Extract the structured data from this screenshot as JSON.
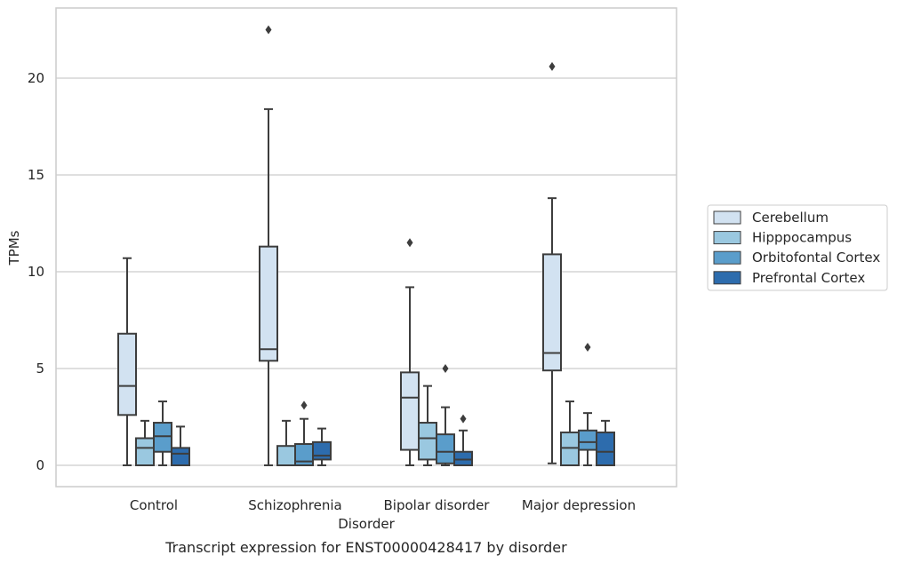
{
  "chart_data": {
    "type": "box",
    "title": "",
    "caption": "Transcript expression for ENST00000428417 by disorder",
    "xlabel": "Disorder",
    "ylabel": "TPMs",
    "ylim": [
      -1.1,
      23.5
    ],
    "yticks": [
      0,
      5,
      10,
      15,
      20
    ],
    "grid": "horizontal",
    "legend_position": "right",
    "categories": [
      "Control",
      "Schizophrenia",
      "Bipolar disorder",
      "Major depression"
    ],
    "series": [
      {
        "name": "Cerebellum",
        "color": "#d2e2f1",
        "boxes": [
          {
            "whislo": 0,
            "q1": 2.6,
            "med": 4.1,
            "q3": 6.8,
            "whishi": 10.7,
            "fliers": []
          },
          {
            "whislo": 0,
            "q1": 5.4,
            "med": 6.0,
            "q3": 11.3,
            "whishi": 18.4,
            "fliers": [
              22.5
            ]
          },
          {
            "whislo": 0,
            "q1": 0.8,
            "med": 3.5,
            "q3": 4.8,
            "whishi": 9.2,
            "fliers": [
              11.5
            ]
          },
          {
            "whislo": 0.1,
            "q1": 4.9,
            "med": 5.8,
            "q3": 10.9,
            "whishi": 13.8,
            "fliers": [
              20.6
            ]
          }
        ]
      },
      {
        "name": "Hipppocampus",
        "color": "#9ac8e0",
        "boxes": [
          {
            "whislo": 0,
            "q1": 0,
            "med": 0.9,
            "q3": 1.4,
            "whishi": 2.3,
            "fliers": []
          },
          {
            "whislo": 0,
            "q1": 0,
            "med": 0,
            "q3": 1.0,
            "whishi": 2.3,
            "fliers": []
          },
          {
            "whislo": 0,
            "q1": 0.3,
            "med": 1.4,
            "q3": 2.2,
            "whishi": 4.1,
            "fliers": []
          },
          {
            "whislo": 0,
            "q1": 0,
            "med": 0.9,
            "q3": 1.7,
            "whishi": 3.3,
            "fliers": []
          }
        ]
      },
      {
        "name": "Orbitofontal Cortex",
        "color": "#5a9dcb",
        "boxes": [
          {
            "whislo": 0,
            "q1": 0.7,
            "med": 1.5,
            "q3": 2.2,
            "whishi": 3.3,
            "fliers": []
          },
          {
            "whislo": 0,
            "q1": 0,
            "med": 0.2,
            "q3": 1.1,
            "whishi": 2.4,
            "fliers": [
              3.1
            ]
          },
          {
            "whislo": 0,
            "q1": 0.1,
            "med": 0.7,
            "q3": 1.6,
            "whishi": 3.0,
            "fliers": [
              5.0
            ]
          },
          {
            "whislo": 0,
            "q1": 0.8,
            "med": 1.2,
            "q3": 1.8,
            "whishi": 2.7,
            "fliers": [
              6.1
            ]
          }
        ]
      },
      {
        "name": "Prefrontal Cortex",
        "color": "#2d6cad",
        "boxes": [
          {
            "whislo": 0,
            "q1": 0,
            "med": 0.6,
            "q3": 0.9,
            "whishi": 2.0,
            "fliers": []
          },
          {
            "whislo": 0,
            "q1": 0.3,
            "med": 0.5,
            "q3": 1.2,
            "whishi": 1.9,
            "fliers": []
          },
          {
            "whislo": 0,
            "q1": 0,
            "med": 0.3,
            "q3": 0.7,
            "whishi": 1.8,
            "fliers": [
              2.4
            ]
          },
          {
            "whislo": 0,
            "q1": 0,
            "med": 0.7,
            "q3": 1.7,
            "whishi": 2.3,
            "fliers": []
          }
        ]
      }
    ]
  }
}
